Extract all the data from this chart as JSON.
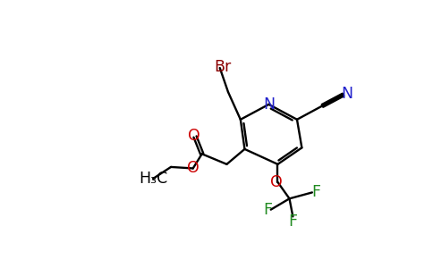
{
  "background_color": "#ffffff",
  "colors": {
    "C": "#000000",
    "O": "#cc0000",
    "N": "#2222cc",
    "F": "#228B22",
    "Br": "#8B0000",
    "bond": "#000000"
  },
  "figsize": [
    4.84,
    3.0
  ],
  "dpi": 100
}
